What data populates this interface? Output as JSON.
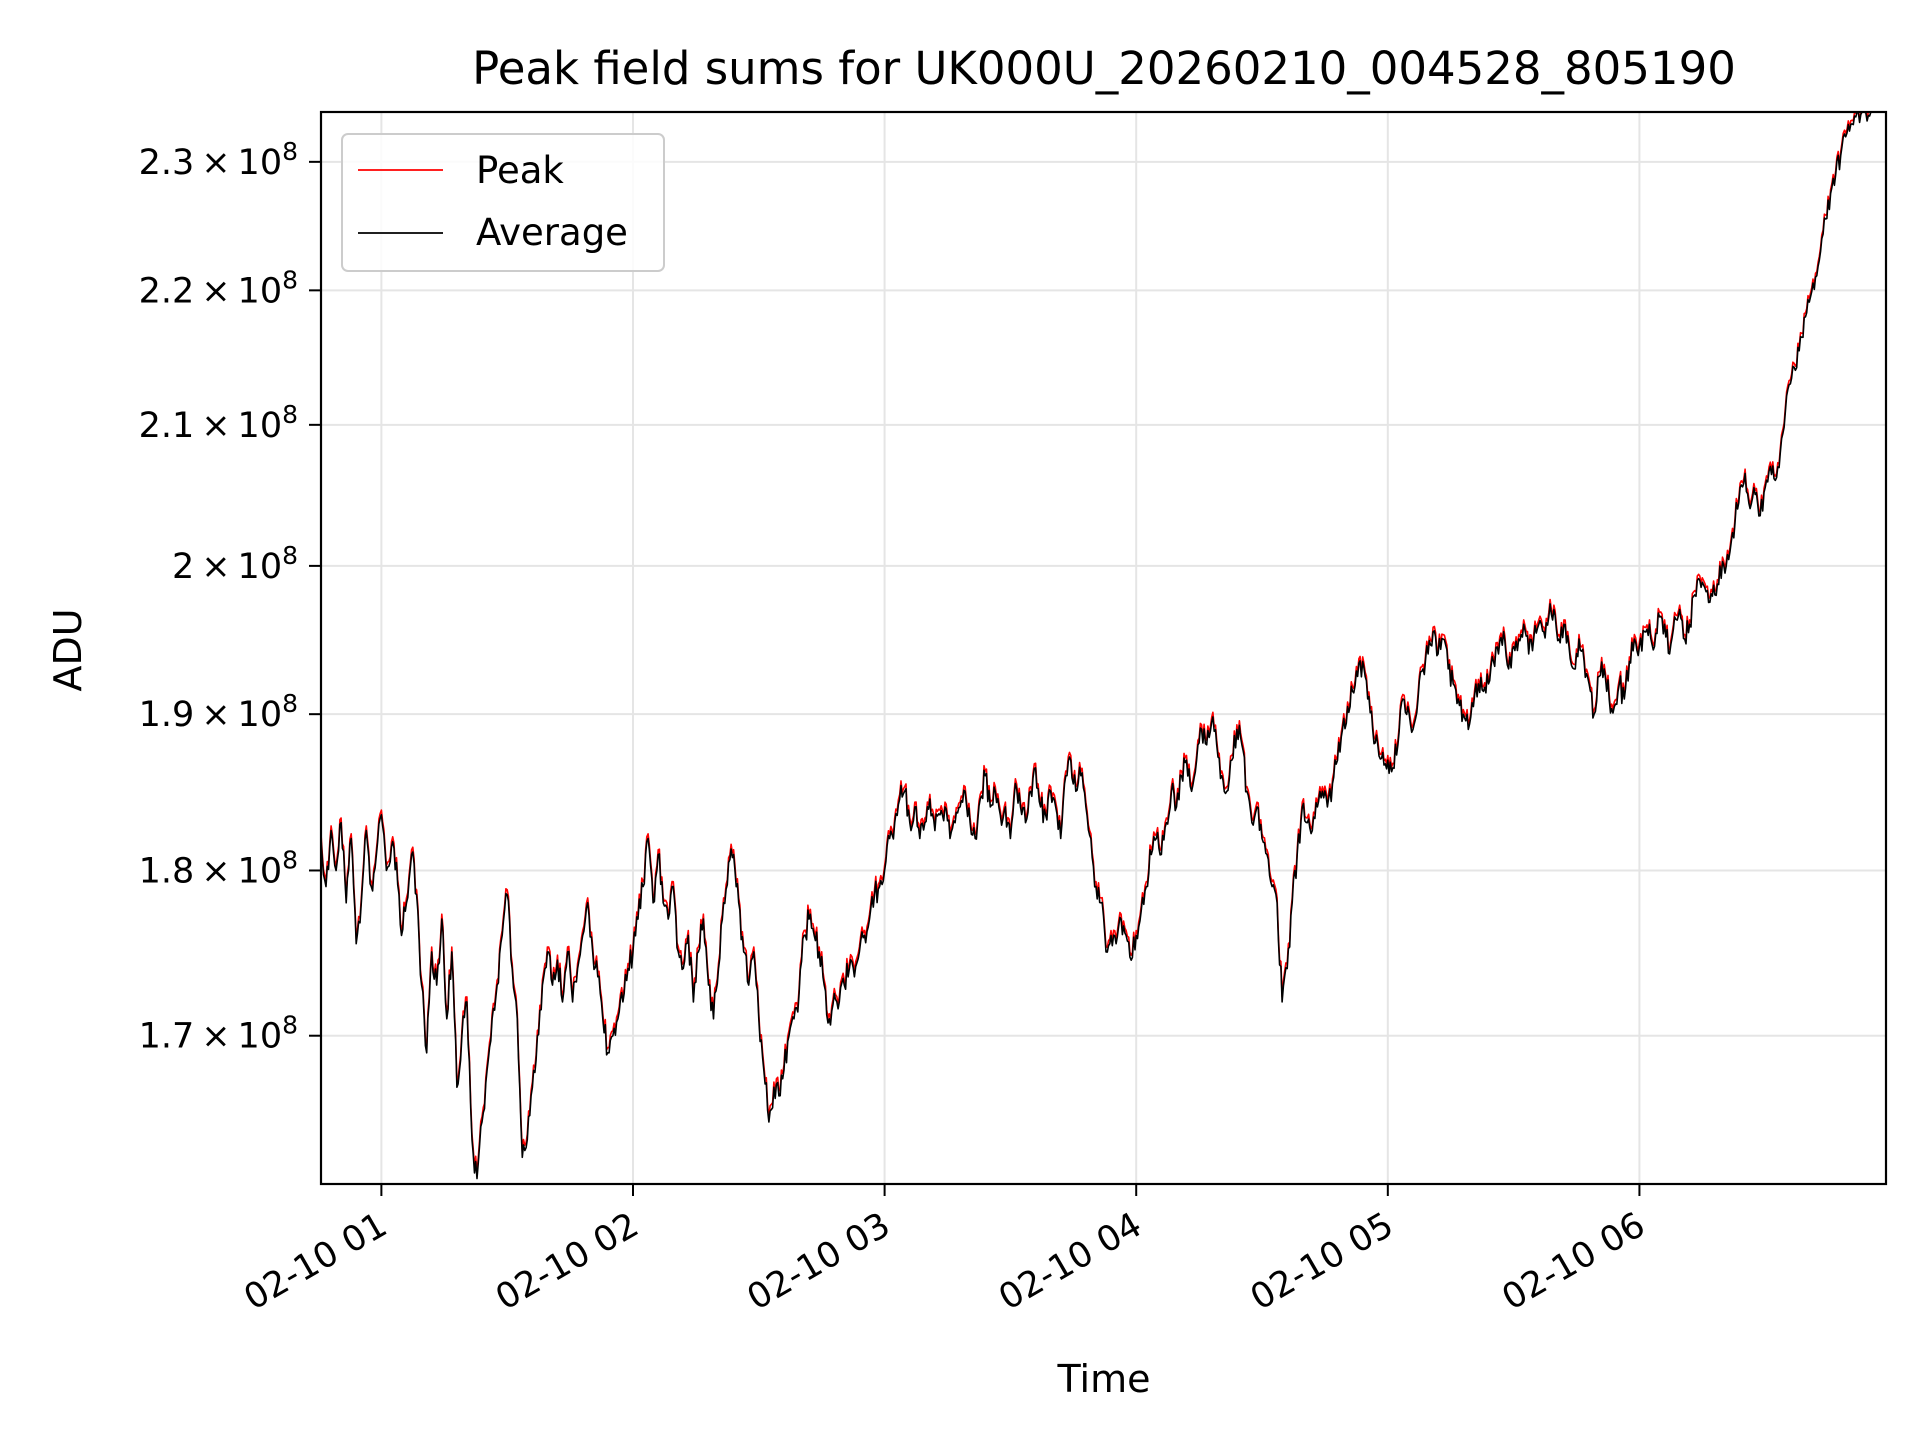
{
  "chart_data": {
    "type": "line",
    "title": "Peak field sums for UK000U_20260210_004528_805190",
    "xlabel": "Time",
    "ylabel": "ADU",
    "yscale": "log",
    "x_unit": "hours since 02-10 00:00",
    "xlim": [
      0.76,
      6.98
    ],
    "ylim": [
      161500000,
      234000000
    ],
    "grid": true,
    "legend_position": "upper left",
    "x_ticks": [
      {
        "value": 1,
        "label": "02-10 01"
      },
      {
        "value": 2,
        "label": "02-10 02"
      },
      {
        "value": 3,
        "label": "02-10 03"
      },
      {
        "value": 4,
        "label": "02-10 04"
      },
      {
        "value": 5,
        "label": "02-10 05"
      },
      {
        "value": 6,
        "label": "02-10 06"
      }
    ],
    "y_ticks": [
      {
        "value": 170000000,
        "mantissa": "1.7",
        "exponent": "8"
      },
      {
        "value": 180000000,
        "mantissa": "1.8",
        "exponent": "8"
      },
      {
        "value": 190000000,
        "mantissa": "1.9",
        "exponent": "8"
      },
      {
        "value": 200000000,
        "mantissa": "2",
        "exponent": "8"
      },
      {
        "value": 210000000,
        "mantissa": "2.1",
        "exponent": "8"
      },
      {
        "value": 220000000,
        "mantissa": "2.2",
        "exponent": "8"
      },
      {
        "value": 230000000,
        "mantissa": "2.3",
        "exponent": "8"
      }
    ],
    "times_x_glyph": "×",
    "series": [
      {
        "name": "Peak",
        "color": "#ff0000",
        "offset": 300000
      },
      {
        "name": "Average",
        "color": "#000000",
        "offset": 0
      }
    ],
    "anchors": [
      [
        0.76,
        182.0
      ],
      [
        0.78,
        179.0
      ],
      [
        0.8,
        182.5
      ],
      [
        0.82,
        180.0
      ],
      [
        0.84,
        183.0
      ],
      [
        0.86,
        178.0
      ],
      [
        0.88,
        182.0
      ],
      [
        0.9,
        175.5
      ],
      [
        0.92,
        178.0
      ],
      [
        0.94,
        182.5
      ],
      [
        0.96,
        179.0
      ],
      [
        0.98,
        181.0
      ],
      [
        1.0,
        183.5
      ],
      [
        1.02,
        180.0
      ],
      [
        1.04,
        181.5
      ],
      [
        1.06,
        180.5
      ],
      [
        1.08,
        176.0
      ],
      [
        1.1,
        178.0
      ],
      [
        1.12,
        181.0
      ],
      [
        1.14,
        178.5
      ],
      [
        1.16,
        173.0
      ],
      [
        1.18,
        169.0
      ],
      [
        1.2,
        175.0
      ],
      [
        1.22,
        173.0
      ],
      [
        1.24,
        177.0
      ],
      [
        1.26,
        171.0
      ],
      [
        1.28,
        175.0
      ],
      [
        1.3,
        167.0
      ],
      [
        1.32,
        170.0
      ],
      [
        1.34,
        172.0
      ],
      [
        1.36,
        164.0
      ],
      [
        1.38,
        161.8
      ],
      [
        1.4,
        165.0
      ],
      [
        1.42,
        168.0
      ],
      [
        1.44,
        171.0
      ],
      [
        1.46,
        173.0
      ],
      [
        1.48,
        176.0
      ],
      [
        1.5,
        178.5
      ],
      [
        1.52,
        174.0
      ],
      [
        1.54,
        171.0
      ],
      [
        1.56,
        163.0
      ],
      [
        1.58,
        164.0
      ],
      [
        1.6,
        167.0
      ],
      [
        1.62,
        170.0
      ],
      [
        1.64,
        173.0
      ],
      [
        1.66,
        175.0
      ],
      [
        1.68,
        173.0
      ],
      [
        1.7,
        174.5
      ],
      [
        1.72,
        172.0
      ],
      [
        1.74,
        175.0
      ],
      [
        1.76,
        172.0
      ],
      [
        1.78,
        174.0
      ],
      [
        1.8,
        176.0
      ],
      [
        1.82,
        178.0
      ],
      [
        1.84,
        175.0
      ],
      [
        1.86,
        173.5
      ],
      [
        1.88,
        171.0
      ],
      [
        1.9,
        169.0
      ],
      [
        1.92,
        170.0
      ],
      [
        1.94,
        171.0
      ],
      [
        1.96,
        172.0
      ],
      [
        1.98,
        174.0
      ],
      [
        2.0,
        175.0
      ],
      [
        2.02,
        177.0
      ],
      [
        2.04,
        179.0
      ],
      [
        2.06,
        182.0
      ],
      [
        2.08,
        178.0
      ],
      [
        2.1,
        181.0
      ],
      [
        2.12,
        178.0
      ],
      [
        2.14,
        177.0
      ],
      [
        2.16,
        179.0
      ],
      [
        2.18,
        175.0
      ],
      [
        2.2,
        174.0
      ],
      [
        2.22,
        176.0
      ],
      [
        2.24,
        172.0
      ],
      [
        2.26,
        175.0
      ],
      [
        2.28,
        177.0
      ],
      [
        2.3,
        173.0
      ],
      [
        2.32,
        171.0
      ],
      [
        2.34,
        174.0
      ],
      [
        2.36,
        178.0
      ],
      [
        2.38,
        180.5
      ],
      [
        2.4,
        181.0
      ],
      [
        2.42,
        178.0
      ],
      [
        2.44,
        175.0
      ],
      [
        2.46,
        173.0
      ],
      [
        2.48,
        175.0
      ],
      [
        2.5,
        171.0
      ],
      [
        2.52,
        168.0
      ],
      [
        2.54,
        165.0
      ],
      [
        2.56,
        167.0
      ],
      [
        2.58,
        166.5
      ],
      [
        2.6,
        168.0
      ],
      [
        2.62,
        170.0
      ],
      [
        2.64,
        171.0
      ],
      [
        2.66,
        172.5
      ],
      [
        2.68,
        176.0
      ],
      [
        2.7,
        177.0
      ],
      [
        2.72,
        176.0
      ],
      [
        2.74,
        175.0
      ],
      [
        2.76,
        173.0
      ],
      [
        2.78,
        171.0
      ],
      [
        2.8,
        172.5
      ],
      [
        2.82,
        172.0
      ],
      [
        2.84,
        173.0
      ],
      [
        2.86,
        174.0
      ],
      [
        2.88,
        173.5
      ],
      [
        2.9,
        175.0
      ],
      [
        2.92,
        176.0
      ],
      [
        2.94,
        177.0
      ],
      [
        2.96,
        178.5
      ],
      [
        2.98,
        179.0
      ],
      [
        3.0,
        180.0
      ],
      [
        3.02,
        182.0
      ],
      [
        3.04,
        183.0
      ],
      [
        3.06,
        184.5
      ],
      [
        3.08,
        185.0
      ],
      [
        3.1,
        183.0
      ],
      [
        3.12,
        184.0
      ],
      [
        3.14,
        182.0
      ],
      [
        3.16,
        183.0
      ],
      [
        3.18,
        184.5
      ],
      [
        3.2,
        182.5
      ],
      [
        3.22,
        183.5
      ],
      [
        3.24,
        184.0
      ],
      [
        3.26,
        182.0
      ],
      [
        3.28,
        183.0
      ],
      [
        3.3,
        184.0
      ],
      [
        3.32,
        185.0
      ],
      [
        3.34,
        183.0
      ],
      [
        3.36,
        182.0
      ],
      [
        3.38,
        184.5
      ],
      [
        3.4,
        186.0
      ],
      [
        3.42,
        184.0
      ],
      [
        3.44,
        185.0
      ],
      [
        3.46,
        183.5
      ],
      [
        3.48,
        184.0
      ],
      [
        3.5,
        182.0
      ],
      [
        3.52,
        185.5
      ],
      [
        3.54,
        184.0
      ],
      [
        3.56,
        183.0
      ],
      [
        3.58,
        185.0
      ],
      [
        3.6,
        186.5
      ],
      [
        3.62,
        184.0
      ],
      [
        3.64,
        183.5
      ],
      [
        3.66,
        185.0
      ],
      [
        3.68,
        184.0
      ],
      [
        3.7,
        182.0
      ],
      [
        3.72,
        186.0
      ],
      [
        3.74,
        187.0
      ],
      [
        3.76,
        185.0
      ],
      [
        3.78,
        186.0
      ],
      [
        3.8,
        184.0
      ],
      [
        3.82,
        182.0
      ],
      [
        3.84,
        179.0
      ],
      [
        3.86,
        178.0
      ],
      [
        3.88,
        175.0
      ],
      [
        3.9,
        176.0
      ],
      [
        3.92,
        175.5
      ],
      [
        3.94,
        177.0
      ],
      [
        3.96,
        176.0
      ],
      [
        3.98,
        174.5
      ],
      [
        4.0,
        176.0
      ],
      [
        4.02,
        177.5
      ],
      [
        4.04,
        179.0
      ],
      [
        4.06,
        181.0
      ],
      [
        4.08,
        182.0
      ],
      [
        4.1,
        181.0
      ],
      [
        4.12,
        183.0
      ],
      [
        4.14,
        185.0
      ],
      [
        4.16,
        184.0
      ],
      [
        4.18,
        186.0
      ],
      [
        4.2,
        187.0
      ],
      [
        4.22,
        185.0
      ],
      [
        4.24,
        187.0
      ],
      [
        4.26,
        189.0
      ],
      [
        4.28,
        188.0
      ],
      [
        4.3,
        189.5
      ],
      [
        4.32,
        188.0
      ],
      [
        4.34,
        186.0
      ],
      [
        4.36,
        185.0
      ],
      [
        4.38,
        187.0
      ],
      [
        4.4,
        189.0
      ],
      [
        4.42,
        188.0
      ],
      [
        4.44,
        185.0
      ],
      [
        4.46,
        183.0
      ],
      [
        4.48,
        184.0
      ],
      [
        4.5,
        182.0
      ],
      [
        4.52,
        181.0
      ],
      [
        4.54,
        179.0
      ],
      [
        4.56,
        178.0
      ],
      [
        4.58,
        172.0
      ],
      [
        4.6,
        174.0
      ],
      [
        4.62,
        178.0
      ],
      [
        4.64,
        181.0
      ],
      [
        4.66,
        184.0
      ],
      [
        4.68,
        183.0
      ],
      [
        4.7,
        182.5
      ],
      [
        4.72,
        184.0
      ],
      [
        4.74,
        185.0
      ],
      [
        4.76,
        184.0
      ],
      [
        4.78,
        185.5
      ],
      [
        4.8,
        187.0
      ],
      [
        4.82,
        189.0
      ],
      [
        4.84,
        190.5
      ],
      [
        4.86,
        191.5
      ],
      [
        4.88,
        192.5
      ],
      [
        4.9,
        193.5
      ],
      [
        4.92,
        191.0
      ],
      [
        4.94,
        189.0
      ],
      [
        4.96,
        188.0
      ],
      [
        4.98,
        187.5
      ],
      [
        5.0,
        187.0
      ],
      [
        5.02,
        186.5
      ],
      [
        5.04,
        188.0
      ],
      [
        5.06,
        191.0
      ],
      [
        5.08,
        190.5
      ],
      [
        5.1,
        189.0
      ],
      [
        5.12,
        191.0
      ],
      [
        5.14,
        193.0
      ],
      [
        5.16,
        194.0
      ],
      [
        5.18,
        195.5
      ],
      [
        5.2,
        194.0
      ],
      [
        5.22,
        195.0
      ],
      [
        5.24,
        193.0
      ],
      [
        5.26,
        192.0
      ],
      [
        5.28,
        191.0
      ],
      [
        5.3,
        190.0
      ],
      [
        5.32,
        189.0
      ],
      [
        5.34,
        190.5
      ],
      [
        5.36,
        192.0
      ],
      [
        5.38,
        191.5
      ],
      [
        5.4,
        192.0
      ],
      [
        5.42,
        193.5
      ],
      [
        5.44,
        194.0
      ],
      [
        5.46,
        195.5
      ],
      [
        5.48,
        193.0
      ],
      [
        5.5,
        194.5
      ],
      [
        5.52,
        195.0
      ],
      [
        5.54,
        196.0
      ],
      [
        5.56,
        194.0
      ],
      [
        5.58,
        195.0
      ],
      [
        5.6,
        196.0
      ],
      [
        5.62,
        195.5
      ],
      [
        5.64,
        196.5
      ],
      [
        5.66,
        197.0
      ],
      [
        5.68,
        195.0
      ],
      [
        5.7,
        196.0
      ],
      [
        5.72,
        194.5
      ],
      [
        5.74,
        193.0
      ],
      [
        5.76,
        195.0
      ],
      [
        5.78,
        193.5
      ],
      [
        5.8,
        192.0
      ],
      [
        5.82,
        190.0
      ],
      [
        5.84,
        192.5
      ],
      [
        5.86,
        193.0
      ],
      [
        5.88,
        191.0
      ],
      [
        5.9,
        190.5
      ],
      [
        5.92,
        192.0
      ],
      [
        5.94,
        191.0
      ],
      [
        5.96,
        193.5
      ],
      [
        5.98,
        195.0
      ],
      [
        6.0,
        194.5
      ],
      [
        6.02,
        195.5
      ],
      [
        6.04,
        196.0
      ],
      [
        6.06,
        194.5
      ],
      [
        6.08,
        196.5
      ],
      [
        6.1,
        196.0
      ],
      [
        6.12,
        194.0
      ],
      [
        6.14,
        196.5
      ],
      [
        6.16,
        197.0
      ],
      [
        6.18,
        195.0
      ],
      [
        6.2,
        196.0
      ],
      [
        6.22,
        198.0
      ],
      [
        6.24,
        199.0
      ],
      [
        6.26,
        198.5
      ],
      [
        6.28,
        197.5
      ],
      [
        6.3,
        198.0
      ],
      [
        6.32,
        200.0
      ],
      [
        6.34,
        199.5
      ],
      [
        6.36,
        201.0
      ],
      [
        6.38,
        203.0
      ],
      [
        6.4,
        205.5
      ],
      [
        6.42,
        206.5
      ],
      [
        6.44,
        204.0
      ],
      [
        6.46,
        205.0
      ],
      [
        6.48,
        203.5
      ],
      [
        6.5,
        205.5
      ],
      [
        6.52,
        207.0
      ],
      [
        6.54,
        206.0
      ],
      [
        6.56,
        208.0
      ],
      [
        6.58,
        211.0
      ],
      [
        6.6,
        213.0
      ],
      [
        6.62,
        214.0
      ],
      [
        6.64,
        216.5
      ],
      [
        6.66,
        218.0
      ],
      [
        6.68,
        219.5
      ],
      [
        6.7,
        221.0
      ],
      [
        6.72,
        223.0
      ],
      [
        6.74,
        225.5
      ],
      [
        6.76,
        227.5
      ],
      [
        6.78,
        229.0
      ],
      [
        6.8,
        230.5
      ],
      [
        6.82,
        232.0
      ],
      [
        6.84,
        233.0
      ],
      [
        6.86,
        233.6
      ],
      [
        6.88,
        233.8
      ],
      [
        6.9,
        233.9
      ],
      [
        6.92,
        234.0
      ]
    ]
  }
}
